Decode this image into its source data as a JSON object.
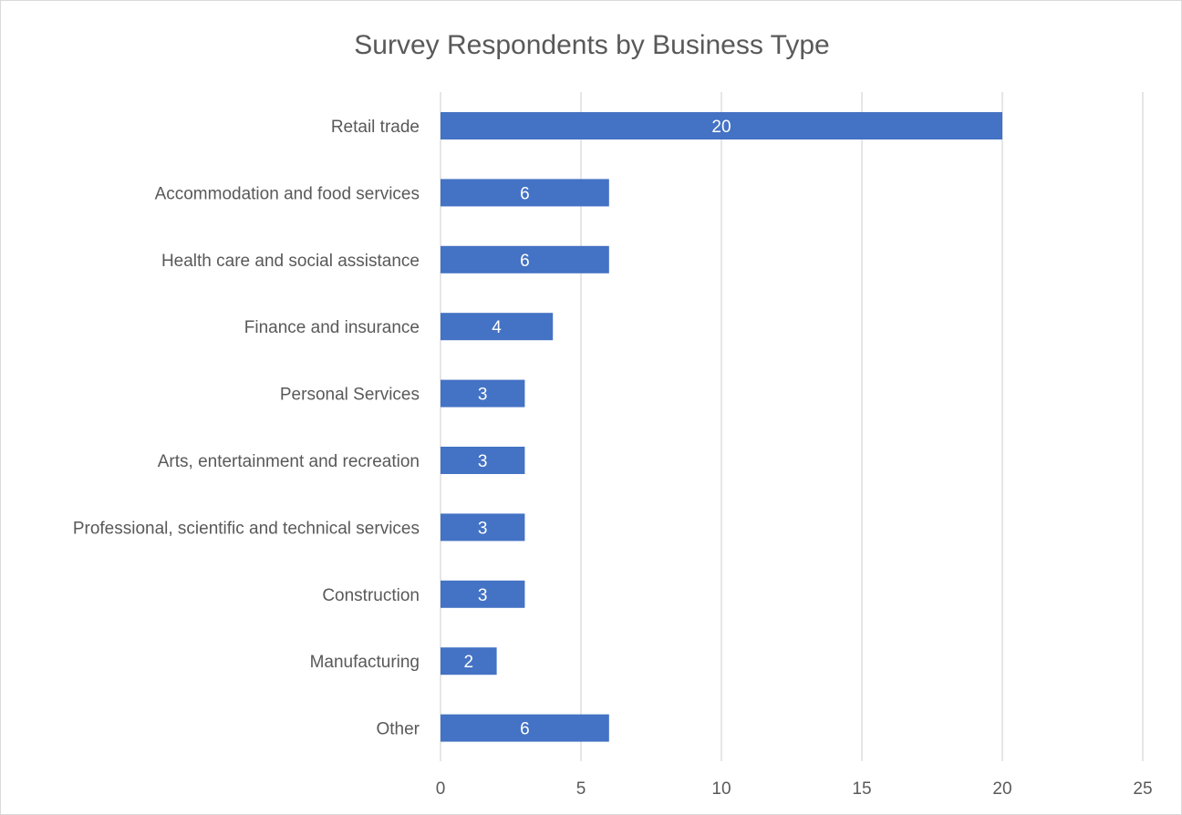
{
  "chart_data": {
    "type": "bar",
    "orientation": "horizontal",
    "title": "Survey Respondents by Business Type",
    "categories": [
      "Retail trade",
      "Accommodation and food services",
      "Health care and social assistance",
      "Finance and insurance",
      "Personal Services",
      "Arts, entertainment and recreation",
      "Professional, scientific and technical services",
      "Construction",
      "Manufacturing",
      "Other"
    ],
    "values": [
      20,
      6,
      6,
      4,
      3,
      3,
      3,
      3,
      2,
      6
    ],
    "xlim": [
      0,
      25
    ],
    "xticks": [
      0,
      5,
      10,
      15,
      20,
      25
    ],
    "grid": true,
    "legend": "none",
    "data_labels": "inside-center"
  },
  "colors": {
    "bar": "#4472C4",
    "grid": "#d9d9d9",
    "text": "#595959",
    "data_label": "#ffffff"
  }
}
